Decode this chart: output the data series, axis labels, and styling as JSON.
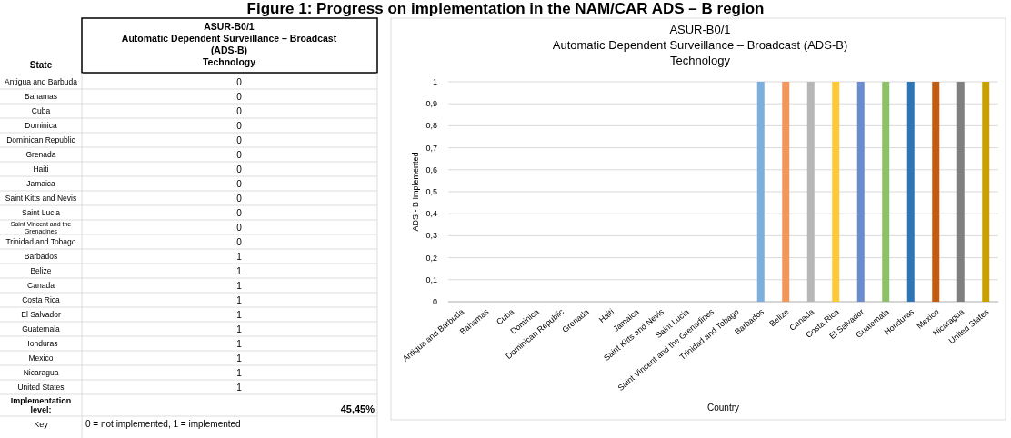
{
  "chart_data": [
    {
      "type": "other",
      "title": "Figure 1: Progress on implementation in the NAM/CAR ADS – B region",
      "subtitle": "ASUR-B0/1\nAutomatic Dependent Surveillance – Broadcast\n(ADS-B)\nTechnology",
      "xlabel": "State",
      "categories": [
        "Antigua and Barbuda",
        "Bahamas",
        "Cuba",
        "Dominica",
        "Dominican Republic",
        "Grenada",
        "Haiti",
        "Jamaica",
        "Saint Kitts and Nevis",
        "Saint Lucia",
        "Saint Vincent and the Grenadines",
        "Trinidad and Tobago",
        "Barbados",
        "Belize",
        "Canada",
        "Costa Rica",
        "El Salvador",
        "Guatemala",
        "Honduras",
        "Mexico",
        "Nicaragua",
        "United States"
      ],
      "values": [
        0,
        0,
        0,
        0,
        0,
        0,
        0,
        0,
        0,
        0,
        0,
        0,
        1,
        1,
        1,
        1,
        1,
        1,
        1,
        1,
        1,
        1
      ],
      "data_labels": true,
      "annotations": [
        "Implementation level:",
        "45,45%",
        "Key",
        "0 = not implemented, 1 = implemented"
      ]
    },
    {
      "type": "bar",
      "title": "ASUR-B0/1\nAutomatic Dependent Surveillance – Broadcast (ADS-B)\nTechnology",
      "xlabel": "Country",
      "ylabel": "ADS - B Implemented",
      "categories": [
        "Antigua and Barbuda",
        "Bahamas",
        "Cuba",
        "Dominica",
        "Dominican Republic",
        "Grenada",
        "Haiti",
        "Jamaica",
        "Saint Kitts and Nevis",
        "Saint Lucia",
        "Saint Vincent and the Grenadines",
        "Trinidad and Tobago",
        "Barbados",
        "Belize",
        "Canada",
        "Costa Rica",
        "El Salvador",
        "Guatemala",
        "Honduras",
        "Mexico",
        "Nicaragua",
        "United States"
      ],
      "values": [
        0,
        0,
        0,
        0,
        0,
        0,
        0,
        0,
        0,
        0,
        0,
        0,
        1,
        1,
        1,
        1,
        1,
        1,
        1,
        1,
        1,
        1
      ],
      "colors": [
        null,
        null,
        null,
        null,
        null,
        null,
        null,
        null,
        null,
        null,
        null,
        null,
        "#7cafdd",
        "#f1975a",
        "#b7b7b7",
        "#ffc935",
        "#6a8ccf",
        "#8cc168",
        "#2e75b6",
        "#c55a11",
        "#7f7f7f",
        "#c9a000"
      ],
      "ylim": [
        0,
        1
      ],
      "yticks": [
        0,
        {
          "value": 0.1,
          "label": "0,1"
        },
        {
          "value": 0.2,
          "label": "0,2"
        },
        {
          "value": 0.3,
          "label": "0,3"
        },
        {
          "value": 0.4,
          "label": "0,4"
        },
        {
          "value": 0.5,
          "label": "0,5"
        },
        {
          "value": 0.6,
          "label": "0,6"
        },
        {
          "value": 0.7,
          "label": "0,7"
        },
        {
          "value": 0.8,
          "label": "0,8"
        },
        {
          "value": 0.9,
          "label": "0,9"
        },
        1
      ],
      "grid": "y"
    }
  ]
}
